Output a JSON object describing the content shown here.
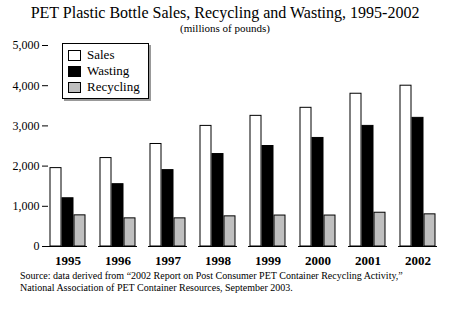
{
  "chart_data": {
    "type": "bar",
    "title": "PET Plastic Bottle Sales, Recycling and Wasting, 1995-2002",
    "subtitle": "(millions of pounds)",
    "caption": "Source: data derived from “2002 Report on Post Consumer PET Container Recycling Activity,” National Association of PET Container Resources, September 2003.",
    "categories": [
      "1995",
      "1996",
      "1997",
      "1998",
      "1999",
      "2000",
      "2001",
      "2002"
    ],
    "series": [
      {
        "name": "Sales",
        "color": "#ffffff",
        "values": [
          1950,
          2200,
          2550,
          3000,
          3250,
          3450,
          3800,
          4000
        ]
      },
      {
        "name": "Wasting",
        "color": "#000000",
        "values": [
          1200,
          1550,
          1900,
          2300,
          2500,
          2700,
          3000,
          3200
        ]
      },
      {
        "name": "Recycling",
        "color": "#bfbfbf",
        "values": [
          775,
          700,
          700,
          750,
          770,
          770,
          840,
          800
        ]
      }
    ],
    "ylim": [
      0,
      5000
    ],
    "yticks": [
      0,
      {
        "value": 1000,
        "label": "1,000"
      },
      {
        "value": 2000,
        "label": "2,000"
      },
      {
        "value": 3000,
        "label": "3,000"
      },
      {
        "value": 4000,
        "label": "4,000"
      },
      {
        "value": 5000,
        "label": "5,000"
      }
    ],
    "grid": false,
    "legend": "top-left"
  }
}
